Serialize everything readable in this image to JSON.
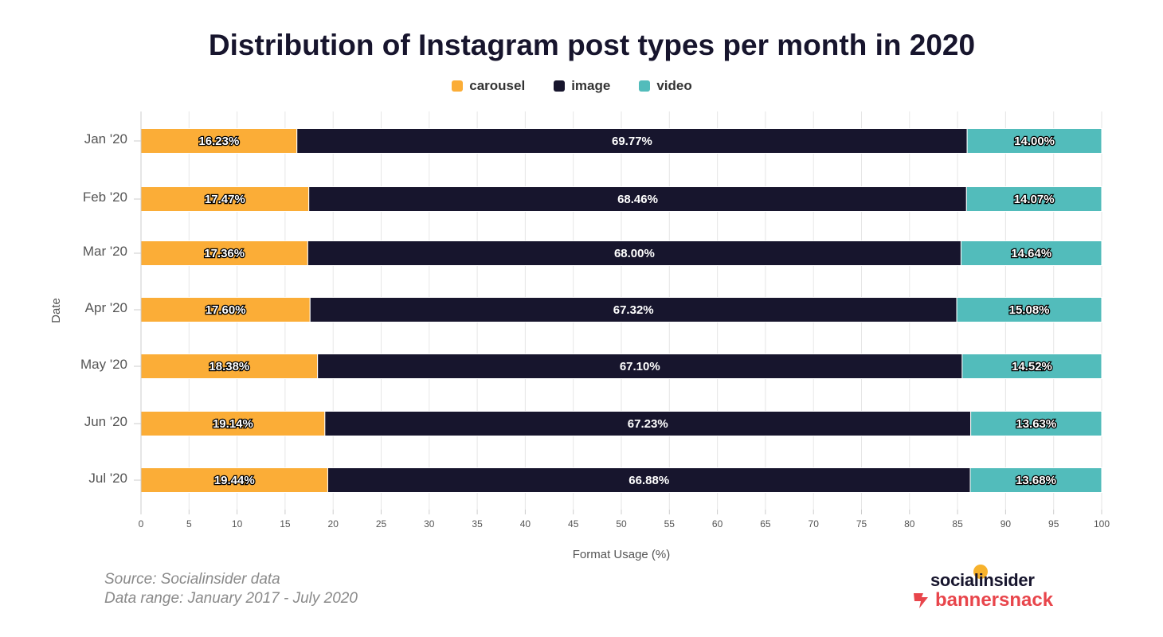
{
  "chart_data": {
    "type": "bar",
    "orientation": "horizontal",
    "stacked": true,
    "title": "Distribution of Instagram post types per month in 2020",
    "xlabel": "Format Usage (%)",
    "ylabel": "Date",
    "xlim": [
      0,
      100
    ],
    "xticks": [
      0,
      5,
      10,
      15,
      20,
      25,
      30,
      35,
      40,
      45,
      50,
      55,
      60,
      65,
      70,
      75,
      80,
      85,
      90,
      95,
      100
    ],
    "grid": true,
    "legend_position": "top-center",
    "categories": [
      "Jan '20",
      "Feb '20",
      "Mar '20",
      "Apr '20",
      "May '20",
      "Jun '20",
      "Jul '20"
    ],
    "series": [
      {
        "name": "carousel",
        "color": "#fbad37",
        "values": [
          16.23,
          17.47,
          17.36,
          17.6,
          18.38,
          19.14,
          19.44
        ],
        "labels": [
          "16.23%",
          "17.47%",
          "17.36%",
          "17.60%",
          "18.38%",
          "19.14%",
          "19.44%"
        ]
      },
      {
        "name": "image",
        "color": "#17152d",
        "values": [
          69.77,
          68.46,
          68.0,
          67.32,
          67.1,
          67.23,
          66.88
        ],
        "labels": [
          "69.77%",
          "68.46%",
          "68.00%",
          "67.32%",
          "67.10%",
          "67.23%",
          "66.88%"
        ]
      },
      {
        "name": "video",
        "color": "#52bcbb",
        "values": [
          14.0,
          14.07,
          14.64,
          15.08,
          14.52,
          13.63,
          13.68
        ],
        "labels": [
          "14.00%",
          "14.07%",
          "14.64%",
          "15.08%",
          "14.52%",
          "13.63%",
          "13.68%"
        ]
      }
    ]
  },
  "footer": {
    "source": "Source: Socialinsider data",
    "range": "Data range: January 2017 - July 2020"
  },
  "logos": {
    "socialinsider": "socialinsider",
    "bannersnack": "bannersnack"
  }
}
